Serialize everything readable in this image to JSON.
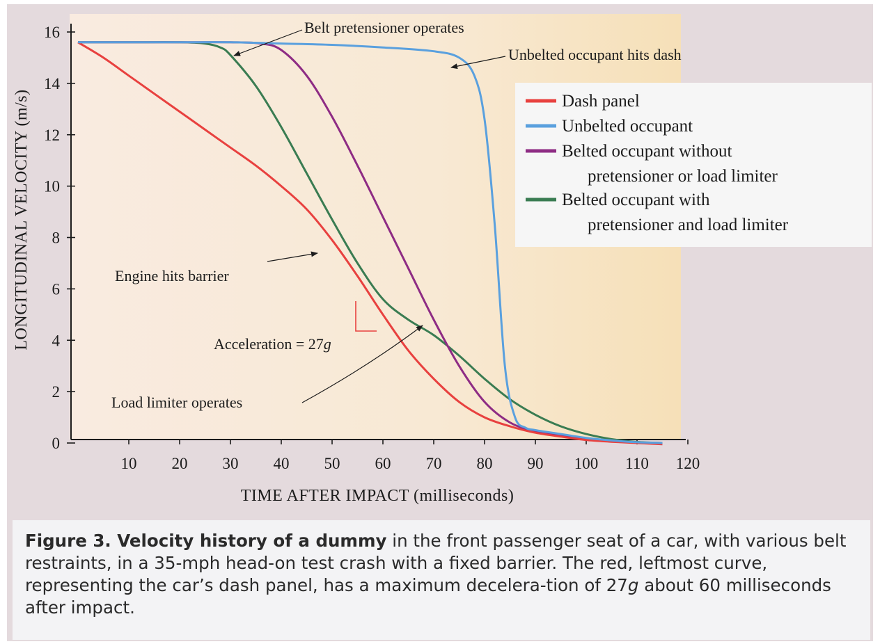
{
  "chart_data": {
    "type": "line",
    "xlabel": "TIME AFTER IMPACT (milliseconds)",
    "ylabel": "LONGITUDINAL VELOCITY (m/s)",
    "xlim": [
      0,
      120
    ],
    "ylim": [
      0,
      16
    ],
    "xticks": [
      "10",
      "20",
      "30",
      "40",
      "50",
      "60",
      "70",
      "80",
      "90",
      "100",
      "110",
      "120"
    ],
    "yticks": [
      "0",
      "2",
      "4",
      "6",
      "8",
      "10",
      "12",
      "14",
      "16"
    ],
    "legend_position": "top-right",
    "series": [
      {
        "name": "Dash panel",
        "color": "#e8413f",
        "x": [
          0,
          5,
          10,
          15,
          20,
          25,
          30,
          35,
          40,
          45,
          50,
          55,
          60,
          65,
          70,
          75,
          80,
          85,
          90,
          95,
          100,
          105,
          110,
          115
        ],
        "y": [
          15.6,
          15.0,
          14.3,
          13.6,
          12.9,
          12.2,
          11.5,
          10.8,
          10.0,
          9.1,
          7.9,
          6.5,
          5.0,
          3.6,
          2.5,
          1.6,
          1.0,
          0.65,
          0.4,
          0.25,
          0.12,
          0.05,
          0.0,
          -0.05
        ]
      },
      {
        "name": "Unbelted occupant",
        "color": "#5aa0de",
        "x": [
          0,
          10,
          20,
          30,
          40,
          50,
          60,
          70,
          75,
          78,
          80,
          82,
          84,
          86,
          88,
          90,
          95,
          100,
          105,
          110,
          115
        ],
        "y": [
          15.6,
          15.6,
          15.6,
          15.6,
          15.55,
          15.5,
          15.4,
          15.25,
          15.0,
          14.3,
          12.6,
          8.5,
          3.0,
          1.0,
          0.6,
          0.5,
          0.35,
          0.2,
          0.1,
          0.03,
          0.0
        ]
      },
      {
        "name": "Belted occupant without pretensioner or load limiter",
        "color": "#8e2c84",
        "x": [
          0,
          10,
          20,
          30,
          36,
          40,
          45,
          50,
          55,
          60,
          65,
          70,
          75,
          80,
          85,
          90,
          95,
          100,
          105,
          110,
          115
        ],
        "y": [
          15.6,
          15.6,
          15.6,
          15.6,
          15.55,
          15.3,
          14.3,
          12.7,
          10.8,
          8.8,
          6.8,
          4.8,
          3.0,
          1.6,
          0.8,
          0.45,
          0.3,
          0.18,
          0.08,
          0.02,
          0.0
        ]
      },
      {
        "name": "Belted occupant with pretensioner and load limiter",
        "color": "#3a7c52",
        "x": [
          0,
          10,
          20,
          25,
          28,
          30,
          35,
          40,
          45,
          50,
          55,
          60,
          65,
          70,
          75,
          80,
          85,
          90,
          95,
          100,
          105,
          110,
          115
        ],
        "y": [
          15.6,
          15.6,
          15.6,
          15.55,
          15.4,
          15.1,
          13.9,
          12.3,
          10.5,
          8.7,
          7.0,
          5.6,
          4.8,
          4.2,
          3.4,
          2.5,
          1.7,
          1.1,
          0.65,
          0.35,
          0.15,
          0.04,
          0.0
        ]
      }
    ],
    "annotations": {
      "pretensioner": "Belt pretensioner operates",
      "unbelted_dash": "Unbelted occupant hits dash",
      "engine": "Engine hits barrier",
      "acceleration_prefix": "Acceleration = 27",
      "acceleration_unit": "g",
      "load_limiter": "Load limiter operates"
    },
    "legend_entries": {
      "dash": "Dash panel",
      "unbelted": "Unbelted occupant",
      "without_1": "Belted occupant without",
      "without_2": "pretensioner or load limiter",
      "with_1": "Belted occupant with",
      "with_2": "pretensioner and load limiter"
    }
  },
  "caption": {
    "title": "Figure 3. Velocity history of a dummy",
    "text1": " in the front passenger seat of a car, with various belt restraints, in a 35-mph head-on test crash with a fixed barrier. The red, leftmost curve, representing the car’s dash panel, has a maximum decelera-tion of 27",
    "g": "g",
    "text2": " about 60 milliseconds after impact."
  }
}
